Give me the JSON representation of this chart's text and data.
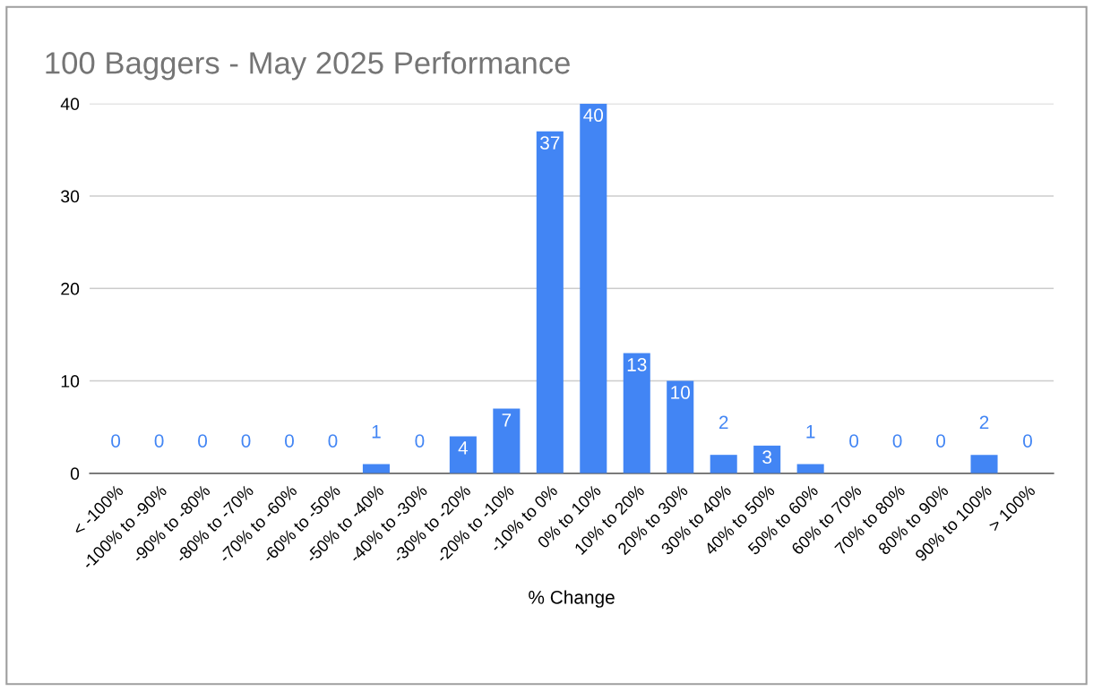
{
  "chart_data": {
    "type": "bar",
    "title": "100 Baggers - May 2025 Performance",
    "xlabel": "% Change",
    "categories": [
      "< -100%",
      "-100% to -90%",
      "-90% to -80%",
      "-80% to -70%",
      "-70% to -60%",
      "-60% to -50%",
      "-50% to -40%",
      "-40% to -30%",
      "-30% to -20%",
      "-20% to -10%",
      "-10% to 0%",
      "0% to 10%",
      "10% to 20%",
      "20% to 30%",
      "30% to 40%",
      "40% to 50%",
      "50% to 60%",
      "60% to 70%",
      "70% to 80%",
      "80% to 90%",
      "90% to 100%",
      "> 100%"
    ],
    "values": [
      0,
      0,
      0,
      0,
      0,
      0,
      1,
      0,
      4,
      7,
      37,
      40,
      13,
      10,
      2,
      3,
      1,
      0,
      0,
      0,
      2,
      0
    ],
    "color": "#4285f4",
    "ylim": [
      0,
      40
    ],
    "yticks": [
      0,
      10,
      20,
      30,
      40
    ],
    "grid": "y",
    "data_labels": true,
    "legend": false
  }
}
